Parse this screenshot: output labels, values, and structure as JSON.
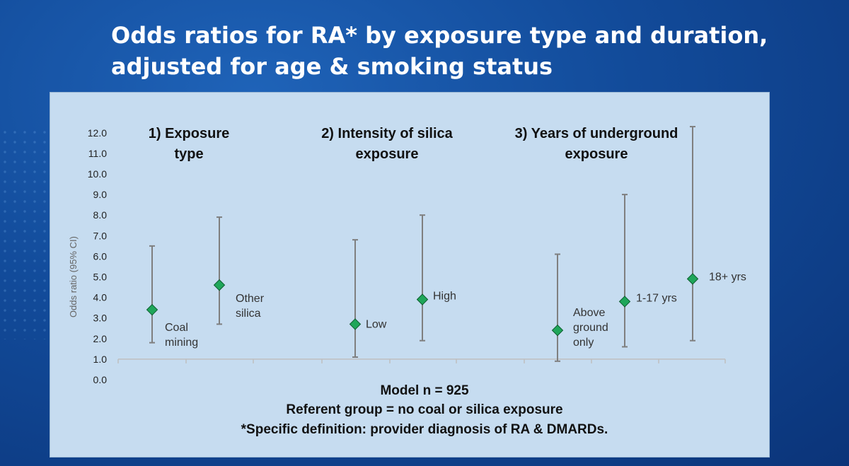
{
  "title_lines": [
    "Odds ratios for RA* by exposure type and duration,",
    "adjusted for age & smoking status"
  ],
  "chart_data": {
    "type": "scatter",
    "ylabel": "Odds ratio (95% CI)",
    "ylim": [
      0,
      12
    ],
    "yticks": [
      "0.0",
      "1.0",
      "2.0",
      "3.0",
      "4.0",
      "5.0",
      "6.0",
      "7.0",
      "8.0",
      "9.0",
      "10.0",
      "11.0",
      "12.0"
    ],
    "panels": [
      {
        "label_lines": [
          "1)  Exposure",
          "type"
        ]
      },
      {
        "label_lines": [
          "2) Intensity of silica",
          "exposure"
        ]
      },
      {
        "label_lines": [
          "3) Years of underground",
          "exposure"
        ]
      }
    ],
    "points": [
      {
        "label_lines": [
          "Coal",
          "mining"
        ],
        "or": 3.4,
        "lower": 1.8,
        "upper": 6.5
      },
      {
        "label_lines": [
          "Other",
          "silica"
        ],
        "or": 4.6,
        "lower": 2.7,
        "upper": 7.9
      },
      {
        "label_lines": [
          "Low"
        ],
        "or": 2.7,
        "lower": 1.1,
        "upper": 6.8
      },
      {
        "label_lines": [
          "High"
        ],
        "or": 3.9,
        "lower": 1.9,
        "upper": 8.0
      },
      {
        "label_lines": [
          "Above",
          "ground",
          "only"
        ],
        "or": 2.4,
        "lower": 0.9,
        "upper": 6.1
      },
      {
        "label_lines": [
          "1-17 yrs"
        ],
        "or": 3.8,
        "lower": 1.6,
        "upper": 9.0
      },
      {
        "label_lines": [
          "18+ yrs"
        ],
        "or": 4.9,
        "lower": 1.9,
        "upper": 12.3
      }
    ],
    "colors": {
      "marker": "#1fa65a",
      "marker_edge": "#0d5e2f",
      "errorbar": "#7f7f7f",
      "axis": "#bfbfbf"
    }
  },
  "notes": [
    "Model n = 925",
    "Referent group = no coal or silica exposure",
    "*Specific definition:  provider diagnosis of RA & DMARDs."
  ]
}
